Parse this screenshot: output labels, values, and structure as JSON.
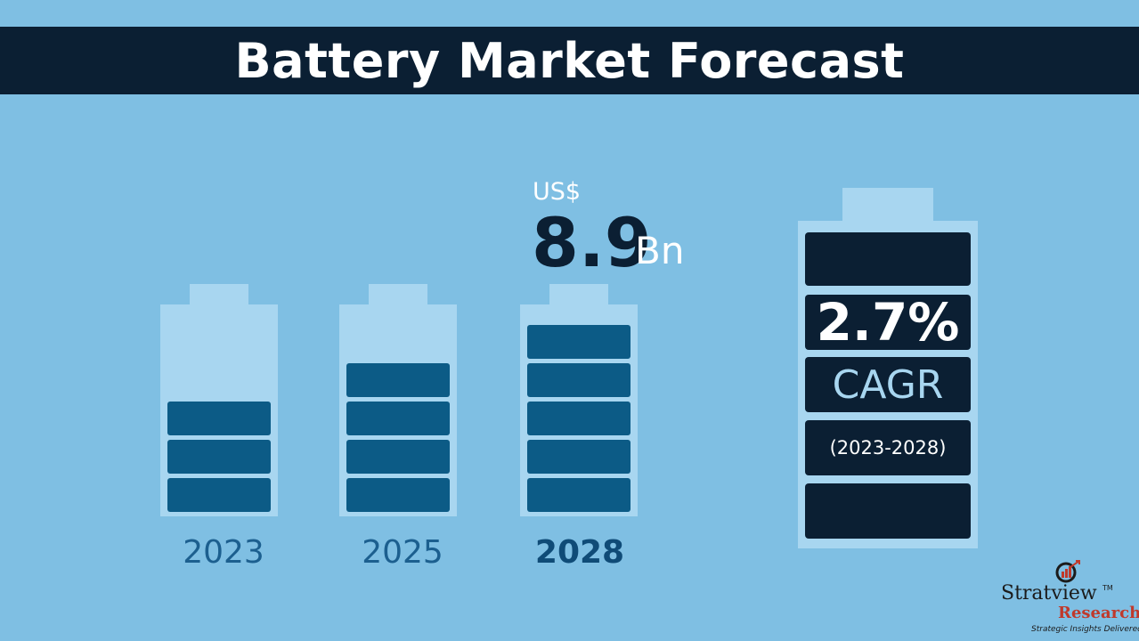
{
  "title": "Battery Market Forecast",
  "chart_data": {
    "type": "bar",
    "categories": [
      "2023",
      "2025",
      "2028"
    ],
    "values": [
      3,
      4,
      5
    ],
    "title": "Battery Market Forecast",
    "xlabel": "",
    "ylabel": "",
    "highlight": {
      "category": "2028",
      "prefix": "US$",
      "value": "8.9",
      "unit": "Bn"
    },
    "cagr": {
      "value": "2.7%",
      "label": "CAGR",
      "period": "(2023-2028)"
    }
  },
  "years": [
    {
      "label": "2023",
      "cells": 3
    },
    {
      "label": "2025",
      "cells": 4
    },
    {
      "label": "2028",
      "cells": 5
    }
  ],
  "logo": {
    "brand": "Stratview",
    "brand2": "Research",
    "tm": "TM",
    "tagline": "Strategic Insights Delivered"
  },
  "colors": {
    "background": "#7fbfe3",
    "title_band": "#0b1f33",
    "battery_body": "#a8d6f0",
    "cell": "#0c5b86",
    "dark_cell": "#0b1f33"
  }
}
